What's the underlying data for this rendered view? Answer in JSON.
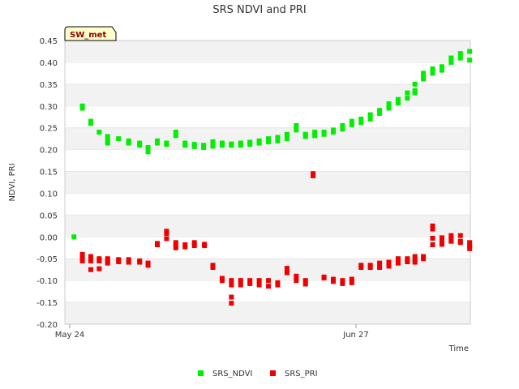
{
  "chart_data": {
    "type": "scatter",
    "title": "SRS NDVI and PRI",
    "xlabel": "Time",
    "ylabel": "NDVI, PRI",
    "site_label": "SW_met",
    "ylim": [
      -0.2,
      0.45
    ],
    "yticks": [
      -0.2,
      -0.15,
      -0.1,
      -0.05,
      0.0,
      0.05,
      0.1,
      0.15,
      0.2,
      0.25,
      0.3,
      0.35,
      0.4,
      0.45
    ],
    "ytick_labels": [
      "-0.20",
      "-0.15",
      "-0.10",
      "-0.05",
      "0.00",
      "0.05",
      "0.10",
      "0.15",
      "0.20",
      "0.25",
      "0.30",
      "0.35",
      "0.40",
      "0.45"
    ],
    "xlim": [
      0,
      47
    ],
    "xticks": [
      {
        "x": 0,
        "label": "May 24"
      },
      {
        "x": 34,
        "label": "Jun 27"
      }
    ],
    "x_unit": "days since May 24",
    "grid": "horizontal bands",
    "legend_position": "bottom-center",
    "colors": {
      "ndvi": "#00ee00",
      "pri": "#ee0000",
      "band": "#f2f2f2",
      "badge_bg": "#ffffcc"
    },
    "series": [
      {
        "name": "SRS_NDVI",
        "color": "#00ee00",
        "points": [
          [
            0.5,
            0.0
          ],
          [
            1.5,
            0.3
          ],
          [
            1.5,
            0.295
          ],
          [
            2.5,
            0.265
          ],
          [
            2.5,
            0.26
          ],
          [
            3.5,
            0.24
          ],
          [
            4.5,
            0.23
          ],
          [
            4.5,
            0.22
          ],
          [
            4.5,
            0.215
          ],
          [
            5.8,
            0.225
          ],
          [
            7,
            0.22
          ],
          [
            7,
            0.215
          ],
          [
            8.3,
            0.215
          ],
          [
            8.3,
            0.21
          ],
          [
            9.3,
            0.205
          ],
          [
            9.3,
            0.195
          ],
          [
            10.4,
            0.22
          ],
          [
            10.4,
            0.215
          ],
          [
            11.5,
            0.215
          ],
          [
            11.5,
            0.212
          ],
          [
            12.6,
            0.24
          ],
          [
            12.6,
            0.232
          ],
          [
            13.7,
            0.215
          ],
          [
            13.7,
            0.21
          ],
          [
            14.8,
            0.212
          ],
          [
            14.8,
            0.207
          ],
          [
            15.9,
            0.21
          ],
          [
            15.9,
            0.205
          ],
          [
            17,
            0.218
          ],
          [
            17,
            0.208
          ],
          [
            18.1,
            0.215
          ],
          [
            18.1,
            0.21
          ],
          [
            19.2,
            0.213
          ],
          [
            19.2,
            0.21
          ],
          [
            20.3,
            0.215
          ],
          [
            20.3,
            0.21
          ],
          [
            21.4,
            0.217
          ],
          [
            21.4,
            0.212
          ],
          [
            22.5,
            0.22
          ],
          [
            22.5,
            0.215
          ],
          [
            23.6,
            0.225
          ],
          [
            23.6,
            0.218
          ],
          [
            24.7,
            0.228
          ],
          [
            24.7,
            0.22
          ],
          [
            25.8,
            0.235
          ],
          [
            25.8,
            0.225
          ],
          [
            26.9,
            0.255
          ],
          [
            26.9,
            0.245
          ],
          [
            28,
            0.235
          ],
          [
            28,
            0.23
          ],
          [
            29.1,
            0.24
          ],
          [
            29.1,
            0.232
          ],
          [
            30.2,
            0.24
          ],
          [
            30.2,
            0.235
          ],
          [
            31.3,
            0.245
          ],
          [
            31.3,
            0.24
          ],
          [
            32.4,
            0.255
          ],
          [
            32.4,
            0.247
          ],
          [
            33.5,
            0.265
          ],
          [
            33.5,
            0.257
          ],
          [
            34.6,
            0.27
          ],
          [
            34.6,
            0.262
          ],
          [
            35.7,
            0.28
          ],
          [
            35.7,
            0.27
          ],
          [
            36.8,
            0.29
          ],
          [
            36.8,
            0.283
          ],
          [
            37.9,
            0.305
          ],
          [
            37.9,
            0.295
          ],
          [
            39,
            0.315
          ],
          [
            39,
            0.307
          ],
          [
            40.1,
            0.33
          ],
          [
            40.1,
            0.318
          ],
          [
            41,
            0.35
          ],
          [
            41,
            0.335
          ],
          [
            41,
            0.33
          ],
          [
            42,
            0.375
          ],
          [
            42,
            0.367
          ],
          [
            42,
            0.362
          ],
          [
            43.1,
            0.385
          ],
          [
            43.1,
            0.375
          ],
          [
            44.2,
            0.39
          ],
          [
            44.2,
            0.382
          ],
          [
            45.3,
            0.41
          ],
          [
            45.3,
            0.4
          ],
          [
            46.4,
            0.42
          ],
          [
            46.4,
            0.41
          ],
          [
            47.5,
            0.425
          ],
          [
            47.5,
            0.405
          ]
        ]
      },
      {
        "name": "SRS_PRI",
        "color": "#ee0000",
        "points": [
          [
            1.5,
            -0.04
          ],
          [
            1.5,
            -0.045
          ],
          [
            1.5,
            -0.05
          ],
          [
            1.5,
            -0.055
          ],
          [
            2.5,
            -0.045
          ],
          [
            2.5,
            -0.055
          ],
          [
            2.5,
            -0.075
          ],
          [
            3.5,
            -0.05
          ],
          [
            3.5,
            -0.055
          ],
          [
            3.5,
            -0.073
          ],
          [
            4.5,
            -0.05
          ],
          [
            4.5,
            -0.055
          ],
          [
            4.5,
            -0.06
          ],
          [
            5.8,
            -0.052
          ],
          [
            5.8,
            -0.057
          ],
          [
            7,
            -0.052
          ],
          [
            7,
            -0.058
          ],
          [
            8.3,
            -0.055
          ],
          [
            8.3,
            -0.058
          ],
          [
            9.3,
            -0.06
          ],
          [
            9.3,
            -0.065
          ],
          [
            10.4,
            -0.015
          ],
          [
            10.4,
            -0.018
          ],
          [
            11.5,
            0.013
          ],
          [
            11.5,
            0.008
          ],
          [
            11.5,
            -0.004
          ],
          [
            12.6,
            -0.013
          ],
          [
            12.6,
            -0.018
          ],
          [
            12.6,
            -0.025
          ],
          [
            13.7,
            -0.018
          ],
          [
            13.7,
            -0.023
          ],
          [
            14.8,
            -0.013
          ],
          [
            14.8,
            -0.02
          ],
          [
            16,
            -0.017
          ],
          [
            16,
            -0.02
          ],
          [
            17,
            -0.065
          ],
          [
            17,
            -0.07
          ],
          [
            18.1,
            -0.095
          ],
          [
            18.1,
            -0.1
          ],
          [
            19.2,
            -0.1
          ],
          [
            19.2,
            -0.11
          ],
          [
            19.2,
            -0.138
          ],
          [
            19.2,
            -0.152
          ],
          [
            20.3,
            -0.1
          ],
          [
            20.3,
            -0.11
          ],
          [
            21.4,
            -0.1
          ],
          [
            21.4,
            -0.107
          ],
          [
            22.5,
            -0.1
          ],
          [
            22.5,
            -0.11
          ],
          [
            23.6,
            -0.1
          ],
          [
            23.6,
            -0.113
          ],
          [
            24.7,
            -0.105
          ],
          [
            24.7,
            -0.11
          ],
          [
            25.8,
            -0.072
          ],
          [
            25.8,
            -0.082
          ],
          [
            26.9,
            -0.09
          ],
          [
            26.9,
            -0.1
          ],
          [
            28,
            -0.1
          ],
          [
            28,
            -0.108
          ],
          [
            28.9,
            0.145
          ],
          [
            28.9,
            0.14
          ],
          [
            30.2,
            -0.092
          ],
          [
            30.2,
            -0.094
          ],
          [
            31.3,
            -0.097
          ],
          [
            31.3,
            -0.102
          ],
          [
            32.4,
            -0.1
          ],
          [
            32.4,
            -0.107
          ],
          [
            33.5,
            -0.097
          ],
          [
            33.5,
            -0.105
          ],
          [
            34.6,
            -0.065
          ],
          [
            34.6,
            -0.07
          ],
          [
            35.7,
            -0.065
          ],
          [
            35.7,
            -0.07
          ],
          [
            36.8,
            -0.06
          ],
          [
            36.8,
            -0.07
          ],
          [
            37.9,
            -0.058
          ],
          [
            37.9,
            -0.067
          ],
          [
            39,
            -0.05
          ],
          [
            39,
            -0.06
          ],
          [
            40.1,
            -0.05
          ],
          [
            40.1,
            -0.057
          ],
          [
            41,
            -0.045
          ],
          [
            41,
            -0.052
          ],
          [
            41,
            -0.058
          ],
          [
            42,
            -0.045
          ],
          [
            42,
            -0.05
          ],
          [
            43.1,
            0.025
          ],
          [
            43.1,
            0.018
          ],
          [
            43.1,
            -0.003
          ],
          [
            43.1,
            -0.018
          ],
          [
            44.2,
            -0.002
          ],
          [
            44.2,
            -0.008
          ],
          [
            44.2,
            -0.017
          ],
          [
            45.3,
            0.003
          ],
          [
            45.3,
            -0.005
          ],
          [
            45.3,
            -0.01
          ],
          [
            46.4,
            0.003
          ],
          [
            46.4,
            -0.01
          ],
          [
            46.4,
            -0.013
          ],
          [
            47.5,
            -0.013
          ],
          [
            47.5,
            -0.02
          ],
          [
            47.5,
            -0.027
          ]
        ]
      }
    ]
  }
}
